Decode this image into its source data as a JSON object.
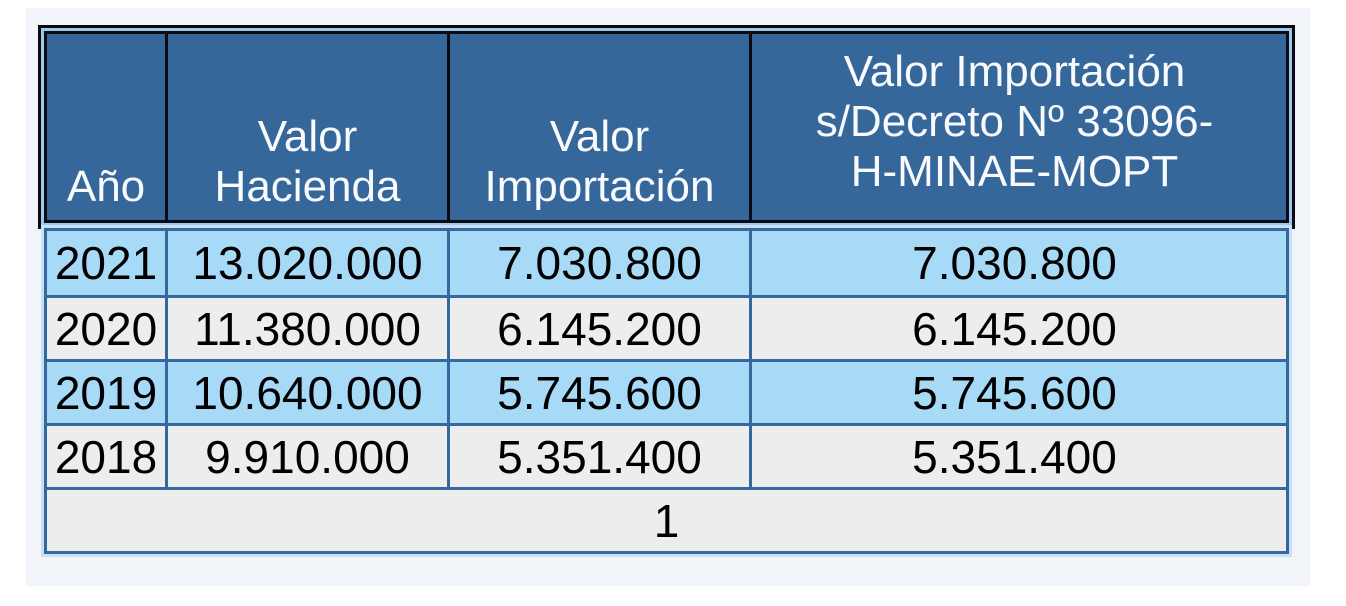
{
  "page": {
    "background_color": "#FFFFFF",
    "panel_background_color": "#F1F4F8"
  },
  "colors": {
    "header_fill": "#35679B",
    "header_text": "#F8FAFD",
    "header_border_black": "#0A0A12",
    "header_outer_ring_lightblue": "#9CC8EE",
    "body_border_blue": "#34689E",
    "body_outer_halo": "#C9DFF4",
    "row_lightblue": "#A7DAF7",
    "row_gray": "#EDEDED",
    "body_text": "#000000"
  },
  "table": {
    "header": {
      "year": "Año",
      "valor_hacienda": "Valor Hacienda",
      "valor_importacion": "Valor Importación",
      "valor_importacion_decreto": "Valor Importación s/Decreto Nº 33096-H-MINAE-MOPT",
      "valor_importacion_decreto_lines": {
        "0": "Valor Importación",
        "1": "s/Decreto Nº 33096-",
        "2": "H-MINAE-MOPT"
      }
    },
    "rows": [
      [
        "2021",
        "13.020.000",
        "7.030.800",
        "7.030.800"
      ],
      [
        "2020",
        "11.380.000",
        "6.145.200",
        "6.145.200"
      ],
      [
        "2019",
        "10.640.000",
        "5.745.600",
        "5.745.600"
      ],
      [
        "2018",
        "9.910.000",
        "5.351.400",
        "5.351.400"
      ]
    ],
    "footer": "1"
  }
}
